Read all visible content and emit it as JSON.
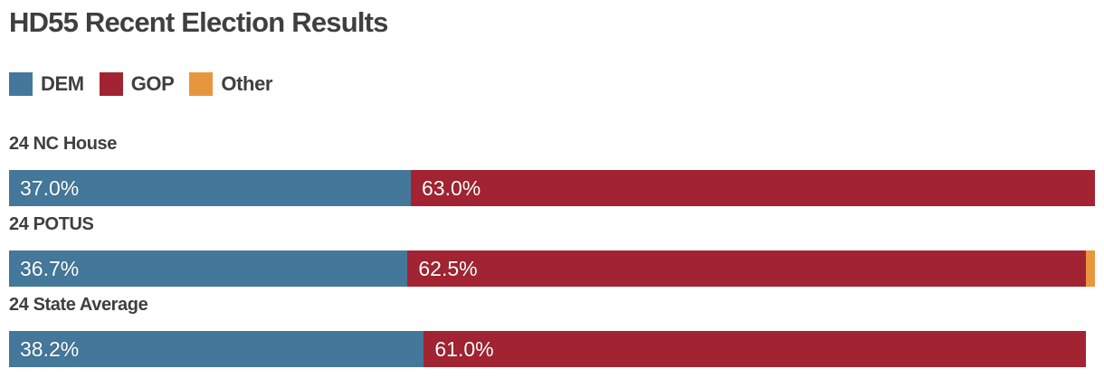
{
  "title": "HD55 Recent Election Results",
  "colors": {
    "dem": "#44789a",
    "gop": "#a22432",
    "other": "#e8963e",
    "heading_text": "#3f3f3f",
    "bar_label_text": "#ffffff",
    "background": "#ffffff"
  },
  "legend": {
    "items": [
      {
        "key": "dem",
        "label": "DEM"
      },
      {
        "key": "gop",
        "label": "GOP"
      },
      {
        "key": "other",
        "label": "Other"
      }
    ]
  },
  "rows": [
    {
      "label": "24 NC House",
      "segments": [
        {
          "key": "dem",
          "pct": 37.0,
          "text": "37.0%"
        },
        {
          "key": "gop",
          "pct": 63.0,
          "text": "63.0%"
        }
      ]
    },
    {
      "label": "24 POTUS",
      "segments": [
        {
          "key": "dem",
          "pct": 36.7,
          "text": "36.7%"
        },
        {
          "key": "gop",
          "pct": 62.5,
          "text": "62.5%"
        },
        {
          "key": "other",
          "pct": 0.8,
          "text": ""
        }
      ]
    },
    {
      "label": "24 State Average",
      "segments": [
        {
          "key": "dem",
          "pct": 38.2,
          "text": "38.2%"
        },
        {
          "key": "gop",
          "pct": 61.0,
          "text": "61.0%"
        }
      ]
    }
  ],
  "chart_data": {
    "type": "bar",
    "orientation": "horizontal",
    "stacked": true,
    "title": "HD55 Recent Election Results",
    "categories": [
      "24 NC House",
      "24 POTUS",
      "24 State Average"
    ],
    "series": [
      {
        "name": "DEM",
        "color": "#44789a",
        "values": [
          37.0,
          36.7,
          38.2
        ]
      },
      {
        "name": "GOP",
        "color": "#a22432",
        "values": [
          63.0,
          62.5,
          61.0
        ]
      },
      {
        "name": "Other",
        "color": "#e8963e",
        "values": [
          0.0,
          0.8,
          0.0
        ]
      }
    ],
    "xlim": [
      0,
      100
    ],
    "value_format": "percent",
    "data_labels": "inside-left",
    "legend_position": "top-left",
    "grid": false,
    "axis_ticks": "none"
  }
}
